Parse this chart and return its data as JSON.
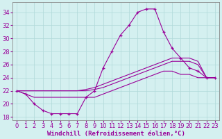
{
  "xlabel": "Windchill (Refroidissement éolien,°C)",
  "bg_color": "#d4f0f0",
  "line_color": "#990099",
  "grid_color": "#b0d8d8",
  "hours": [
    0,
    1,
    2,
    3,
    4,
    5,
    6,
    7,
    8,
    9,
    10,
    11,
    12,
    13,
    14,
    15,
    16,
    17,
    18,
    19,
    20,
    21,
    22,
    23
  ],
  "main_line": [
    22,
    21.5,
    20,
    19,
    18.5,
    18.5,
    18.5,
    18.5,
    21,
    22,
    25.5,
    28,
    30.5,
    32,
    34,
    34.5,
    34.5,
    31,
    28.5,
    27,
    25.5,
    25,
    24,
    24
  ],
  "line_upper": [
    22,
    22,
    22,
    22,
    22,
    22,
    22,
    22,
    22.2,
    22.5,
    23,
    23.5,
    24,
    24.5,
    25,
    25.5,
    26,
    26.5,
    27,
    27,
    27,
    26.5,
    24,
    24
  ],
  "line_mid": [
    22,
    22,
    22,
    22,
    22,
    22,
    22,
    22,
    22,
    22.2,
    22.5,
    23,
    23.5,
    24,
    24.5,
    25,
    25.5,
    26,
    26.5,
    26.5,
    26.5,
    26,
    24,
    24
  ],
  "line_lower": [
    22,
    21.5,
    21,
    21,
    21,
    21,
    21,
    21,
    21,
    21,
    21.5,
    22,
    22.5,
    23,
    23.5,
    24,
    24.5,
    25,
    25,
    24.5,
    24.5,
    24,
    24,
    24
  ],
  "xlim": [
    -0.5,
    23.5
  ],
  "ylim": [
    17.5,
    35.5
  ],
  "xticks": [
    0,
    1,
    2,
    3,
    4,
    5,
    6,
    7,
    8,
    9,
    10,
    11,
    12,
    13,
    14,
    15,
    16,
    17,
    18,
    19,
    20,
    21,
    22,
    23
  ],
  "yticks": [
    18,
    20,
    22,
    24,
    26,
    28,
    30,
    32,
    34
  ],
  "xlabel_fontsize": 6.5,
  "tick_fontsize": 6
}
